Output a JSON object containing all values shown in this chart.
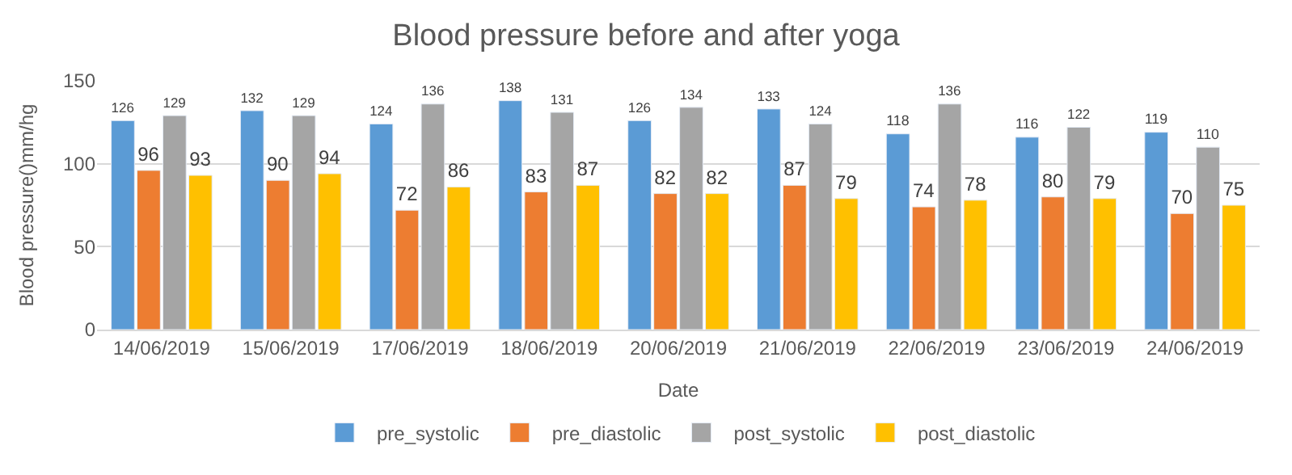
{
  "chart_data": {
    "type": "bar",
    "title": "Blood pressure before and after yoga",
    "xlabel": "Date",
    "ylabel": "Blood pressure()mm/hg",
    "categories": [
      "14/06/2019",
      "15/06/2019",
      "17/06/2019",
      "18/06/2019",
      "20/06/2019",
      "21/06/2019",
      "22/06/2019",
      "23/06/2019",
      "24/06/2019"
    ],
    "series": [
      {
        "name": "pre_systolic",
        "color": "#5b9bd5",
        "values": [
          126,
          132,
          124,
          138,
          126,
          133,
          118,
          116,
          119
        ]
      },
      {
        "name": "pre_diastolic",
        "color": "#ed7d31",
        "values": [
          96,
          90,
          72,
          83,
          82,
          87,
          74,
          80,
          70
        ]
      },
      {
        "name": "post_systolic",
        "color": "#a5a5a5",
        "values": [
          129,
          129,
          136,
          131,
          134,
          124,
          136,
          122,
          110
        ]
      },
      {
        "name": "post_diastolic",
        "color": "#ffc000",
        "values": [
          93,
          94,
          86,
          87,
          82,
          79,
          78,
          79,
          75
        ]
      }
    ],
    "ylim": [
      0,
      150
    ],
    "yticks": [
      0,
      50,
      100,
      150
    ],
    "grid": "y",
    "legend": "bottom",
    "data_labels": true
  }
}
